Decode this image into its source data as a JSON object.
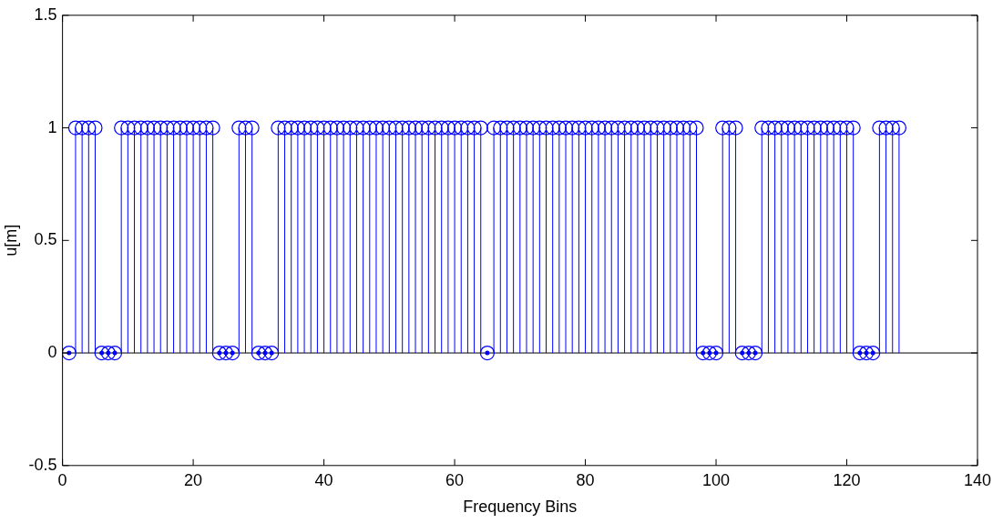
{
  "chart_data": {
    "type": "lollipop",
    "xlabel": "Frequency Bins",
    "ylabel": "u[m]",
    "x": [
      1,
      2,
      3,
      4,
      5,
      6,
      7,
      8,
      9,
      10,
      11,
      12,
      13,
      14,
      15,
      16,
      17,
      18,
      19,
      20,
      21,
      22,
      23,
      24,
      25,
      26,
      27,
      28,
      29,
      30,
      31,
      32,
      33,
      34,
      35,
      36,
      37,
      38,
      39,
      40,
      41,
      42,
      43,
      44,
      45,
      46,
      47,
      48,
      49,
      50,
      51,
      52,
      53,
      54,
      55,
      56,
      57,
      58,
      59,
      60,
      61,
      62,
      63,
      64,
      65,
      66,
      67,
      68,
      69,
      70,
      71,
      72,
      73,
      74,
      75,
      76,
      77,
      78,
      79,
      80,
      81,
      82,
      83,
      84,
      85,
      86,
      87,
      88,
      89,
      90,
      91,
      92,
      93,
      94,
      95,
      96,
      97,
      98,
      99,
      100,
      101,
      102,
      103,
      104,
      105,
      106,
      107,
      108,
      109,
      110,
      111,
      112,
      113,
      114,
      115,
      116,
      117,
      118,
      119,
      120,
      121,
      122,
      123,
      124,
      125,
      126,
      127,
      128
    ],
    "series": [
      {
        "color": "#0000ff",
        "values": [
          0,
          1,
          1,
          1,
          1,
          0,
          0,
          0,
          1,
          1,
          1,
          1,
          1,
          1,
          1,
          1,
          1,
          1,
          1,
          1,
          1,
          1,
          1,
          0,
          0,
          0,
          1,
          1,
          1,
          0,
          0,
          0,
          1,
          1,
          1,
          1,
          1,
          1,
          1,
          1,
          1,
          1,
          1,
          1,
          1,
          1,
          1,
          1,
          1,
          1,
          1,
          1,
          1,
          1,
          1,
          1,
          1,
          1,
          1,
          1,
          1,
          1,
          1,
          1,
          0,
          1,
          1,
          1,
          1,
          1,
          1,
          1,
          1,
          1,
          1,
          1,
          1,
          1,
          1,
          1,
          1,
          1,
          1,
          1,
          1,
          1,
          1,
          1,
          1,
          1,
          1,
          1,
          1,
          1,
          1,
          1,
          1,
          0,
          0,
          0,
          1,
          1,
          1,
          0,
          0,
          0,
          1,
          1,
          1,
          1,
          1,
          1,
          1,
          1,
          1,
          1,
          1,
          1,
          1,
          1,
          1,
          0,
          0,
          0,
          1,
          1,
          1,
          1
        ]
      }
    ],
    "xlim": [
      0,
      140
    ],
    "xticks": [
      0,
      20,
      40,
      60,
      80,
      100,
      120,
      140
    ],
    "ylim": [
      -0.5,
      1.5
    ],
    "yticks": [
      -0.5,
      0,
      0.5,
      1,
      1.5
    ],
    "ref_lines": [
      {
        "axis": "y",
        "value": 0,
        "color": "#000000"
      }
    ],
    "marker": "circle"
  }
}
